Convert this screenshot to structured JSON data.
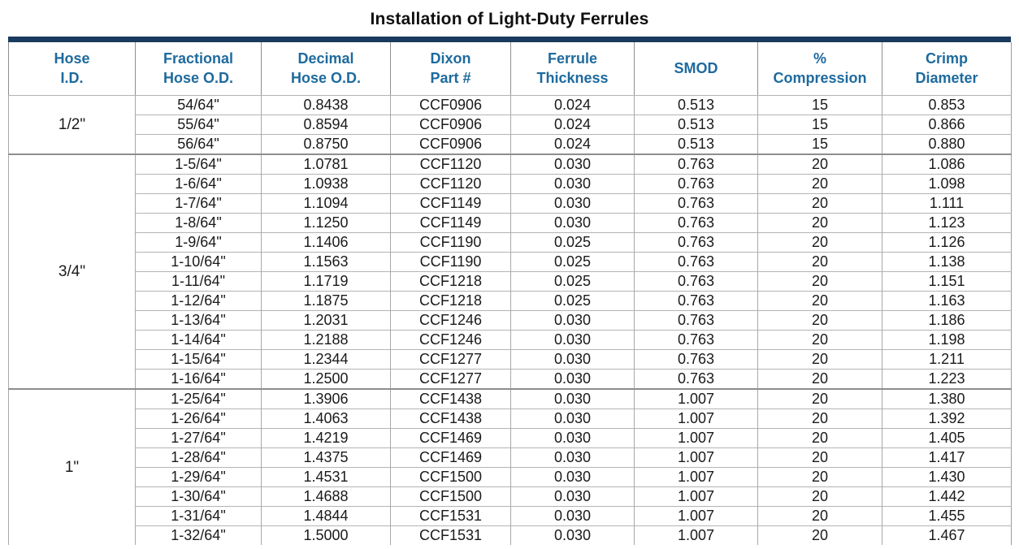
{
  "title": "Installation of Light-Duty Ferrules",
  "colors": {
    "accent_navy": "#1a3a5e",
    "header_blue": "#1e6a9e",
    "column_border_gray": "#9c9c9c",
    "row_line_gray": "#b4b4b4",
    "section_line_gray": "#8e8e8e",
    "data_text": "#1a1a1a",
    "background": "#ffffff"
  },
  "table": {
    "columns": [
      {
        "key": "hose_id",
        "label": "Hose\nI.D."
      },
      {
        "key": "fractional_od",
        "label": "Fractional\nHose O.D."
      },
      {
        "key": "decimal_od",
        "label": "Decimal\nHose O.D."
      },
      {
        "key": "dixon_part",
        "label": "Dixon\nPart #"
      },
      {
        "key": "ferrule_thickness",
        "label": "Ferrule\nThickness"
      },
      {
        "key": "smod",
        "label": "SMOD"
      },
      {
        "key": "compression",
        "label": "%\nCompression"
      },
      {
        "key": "crimp_diameter",
        "label": "Crimp\nDiameter"
      }
    ],
    "sections": [
      {
        "hose_id": "1/2\"",
        "rows": [
          [
            "54/64\"",
            "0.8438",
            "CCF0906",
            "0.024",
            "0.513",
            "15",
            "0.853"
          ],
          [
            "55/64\"",
            "0.8594",
            "CCF0906",
            "0.024",
            "0.513",
            "15",
            "0.866"
          ],
          [
            "56/64\"",
            "0.8750",
            "CCF0906",
            "0.024",
            "0.513",
            "15",
            "0.880"
          ]
        ]
      },
      {
        "hose_id": "3/4\"",
        "rows": [
          [
            "1-5/64\"",
            "1.0781",
            "CCF1120",
            "0.030",
            "0.763",
            "20",
            "1.086"
          ],
          [
            "1-6/64\"",
            "1.0938",
            "CCF1120",
            "0.030",
            "0.763",
            "20",
            "1.098"
          ],
          [
            "1-7/64\"",
            "1.1094",
            "CCF1149",
            "0.030",
            "0.763",
            "20",
            "1.111"
          ],
          [
            "1-8/64\"",
            "1.1250",
            "CCF1149",
            "0.030",
            "0.763",
            "20",
            "1.123"
          ],
          [
            "1-9/64\"",
            "1.1406",
            "CCF1190",
            "0.025",
            "0.763",
            "20",
            "1.126"
          ],
          [
            "1-10/64\"",
            "1.1563",
            "CCF1190",
            "0.025",
            "0.763",
            "20",
            "1.138"
          ],
          [
            "1-11/64\"",
            "1.1719",
            "CCF1218",
            "0.025",
            "0.763",
            "20",
            "1.151"
          ],
          [
            "1-12/64\"",
            "1.1875",
            "CCF1218",
            "0.025",
            "0.763",
            "20",
            "1.163"
          ],
          [
            "1-13/64\"",
            "1.2031",
            "CCF1246",
            "0.030",
            "0.763",
            "20",
            "1.186"
          ],
          [
            "1-14/64\"",
            "1.2188",
            "CCF1246",
            "0.030",
            "0.763",
            "20",
            "1.198"
          ],
          [
            "1-15/64\"",
            "1.2344",
            "CCF1277",
            "0.030",
            "0.763",
            "20",
            "1.211"
          ],
          [
            "1-16/64\"",
            "1.2500",
            "CCF1277",
            "0.030",
            "0.763",
            "20",
            "1.223"
          ]
        ]
      },
      {
        "hose_id": "1\"",
        "rows": [
          [
            "1-25/64\"",
            "1.3906",
            "CCF1438",
            "0.030",
            "1.007",
            "20",
            "1.380"
          ],
          [
            "1-26/64\"",
            "1.4063",
            "CCF1438",
            "0.030",
            "1.007",
            "20",
            "1.392"
          ],
          [
            "1-27/64\"",
            "1.4219",
            "CCF1469",
            "0.030",
            "1.007",
            "20",
            "1.405"
          ],
          [
            "1-28/64\"",
            "1.4375",
            "CCF1469",
            "0.030",
            "1.007",
            "20",
            "1.417"
          ],
          [
            "1-29/64\"",
            "1.4531",
            "CCF1500",
            "0.030",
            "1.007",
            "20",
            "1.430"
          ],
          [
            "1-30/64\"",
            "1.4688",
            "CCF1500",
            "0.030",
            "1.007",
            "20",
            "1.442"
          ],
          [
            "1-31/64\"",
            "1.4844",
            "CCF1531",
            "0.030",
            "1.007",
            "20",
            "1.455"
          ],
          [
            "1-32/64\"",
            "1.5000",
            "CCF1531",
            "0.030",
            "1.007",
            "20",
            "1.467"
          ]
        ]
      }
    ]
  }
}
